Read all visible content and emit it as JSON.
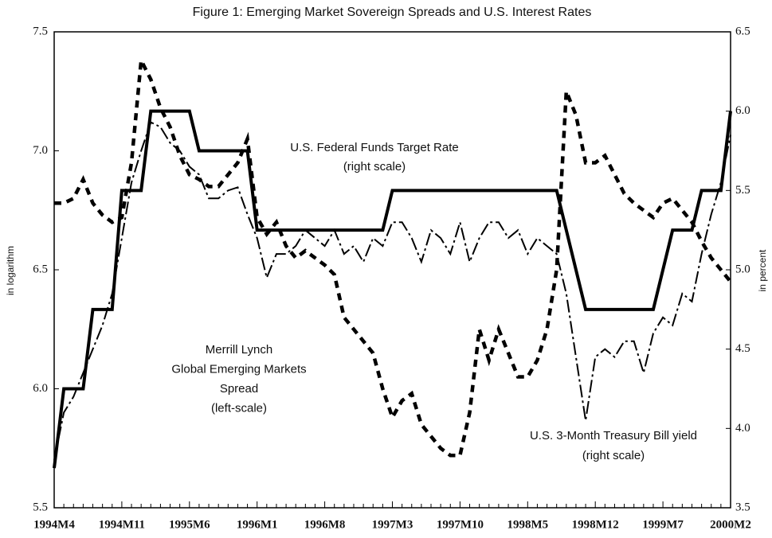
{
  "chart_data": {
    "type": "line",
    "title": "Figure 1: Emerging Market Sovereign Spreads and U.S. Interest Rates",
    "ylabel": "in logarithm",
    "y2label": "in percent",
    "categories": [
      "1994M4",
      null,
      null,
      null,
      null,
      null,
      null,
      "1994M11",
      null,
      null,
      null,
      null,
      null,
      null,
      "1995M6",
      null,
      null,
      null,
      null,
      null,
      null,
      "1996M1",
      null,
      null,
      null,
      null,
      null,
      null,
      "1996M8",
      null,
      null,
      null,
      null,
      null,
      null,
      "1997M3",
      null,
      null,
      null,
      null,
      null,
      null,
      "1997M10",
      null,
      null,
      null,
      null,
      null,
      null,
      "1998M5",
      null,
      null,
      null,
      null,
      null,
      null,
      "1998M12",
      null,
      null,
      null,
      null,
      null,
      null,
      "1999M7",
      null,
      null,
      null,
      null,
      null,
      null,
      "2000M2"
    ],
    "ylim": [
      5.5,
      7.5
    ],
    "yticks": [
      5.5,
      {
        "value": 6,
        "label": "6.0"
      },
      6.5,
      {
        "value": 7,
        "label": "7.0"
      },
      7.5
    ],
    "y2lim": [
      3.5,
      6.5
    ],
    "y2ticks": [
      3.5,
      {
        "value": 4,
        "label": "4.0"
      },
      4.5,
      {
        "value": 5,
        "label": "5.0"
      },
      5.5,
      {
        "value": 6,
        "label": "6.0"
      },
      6.5
    ],
    "series": [
      {
        "color": "#000000",
        "style": "dashed",
        "values": [
          6.78,
          6.78,
          6.8,
          6.88,
          6.78,
          6.73,
          6.7,
          6.72,
          6.95,
          7.38,
          7.3,
          7.18,
          7.1,
          6.98,
          6.9,
          6.88,
          6.85,
          6.85,
          6.9,
          6.95,
          7.05,
          6.72,
          6.65,
          6.7,
          6.6,
          6.55,
          6.58,
          6.55,
          6.52,
          6.48,
          6.3,
          6.25,
          6.2,
          6.15,
          6.0,
          5.88,
          5.95,
          5.98,
          5.85,
          5.8,
          5.75,
          5.72,
          5.72,
          5.9,
          6.25,
          6.12,
          6.25,
          6.15,
          6.05,
          6.05,
          6.12,
          6.25,
          6.5,
          7.25,
          7.15,
          6.95,
          6.95,
          6.98,
          6.9,
          6.82,
          6.78,
          6.75,
          6.72,
          6.78,
          6.8,
          6.75,
          6.7,
          6.62,
          6.55,
          6.5,
          6.45
        ]
      },
      {
        "color": "#000000",
        "style": "solid",
        "axis": "y2",
        "values": [
          3.75,
          4.25,
          4.25,
          4.25,
          4.75,
          4.75,
          4.75,
          5.5,
          5.5,
          5.5,
          6.0,
          6.0,
          6.0,
          6.0,
          6.0,
          5.75,
          5.75,
          5.75,
          5.75,
          5.75,
          5.75,
          5.25,
          5.25,
          5.25,
          5.25,
          5.25,
          5.25,
          5.25,
          5.25,
          5.25,
          5.25,
          5.25,
          5.25,
          5.25,
          5.25,
          5.5,
          5.5,
          5.5,
          5.5,
          5.5,
          5.5,
          5.5,
          5.5,
          5.5,
          5.5,
          5.5,
          5.5,
          5.5,
          5.5,
          5.5,
          5.5,
          5.5,
          5.5,
          5.25,
          5.0,
          4.75,
          4.75,
          4.75,
          4.75,
          4.75,
          4.75,
          4.75,
          4.75,
          5.0,
          5.25,
          5.25,
          5.25,
          5.5,
          5.5,
          5.5,
          6.0
        ]
      },
      {
        "color": "#000000",
        "style": "dashdot",
        "axis": "y2",
        "values": [
          3.8,
          4.1,
          4.2,
          4.35,
          4.5,
          4.65,
          4.85,
          5.2,
          5.55,
          5.75,
          5.93,
          5.9,
          5.8,
          5.75,
          5.65,
          5.6,
          5.45,
          5.45,
          5.5,
          5.52,
          5.35,
          5.2,
          4.95,
          5.1,
          5.1,
          5.15,
          5.25,
          5.2,
          5.15,
          5.25,
          5.1,
          5.15,
          5.05,
          5.2,
          5.15,
          5.3,
          5.3,
          5.2,
          5.05,
          5.25,
          5.2,
          5.1,
          5.3,
          5.05,
          5.2,
          5.3,
          5.3,
          5.2,
          5.25,
          5.1,
          5.2,
          5.15,
          5.1,
          4.85,
          4.45,
          4.05,
          4.45,
          4.5,
          4.45,
          4.55,
          4.55,
          4.35,
          4.6,
          4.7,
          4.65,
          4.85,
          4.8,
          5.1,
          5.35,
          5.55,
          5.85
        ]
      }
    ],
    "annotations": [
      [
        "U.S. Federal Funds Target Rate",
        "(right scale)"
      ],
      [
        "Merrill Lynch",
        "Global Emerging Markets",
        "Spread",
        "(left-scale)"
      ],
      [
        "U.S. 3-Month Treasury Bill yield",
        "(right scale)"
      ]
    ]
  }
}
